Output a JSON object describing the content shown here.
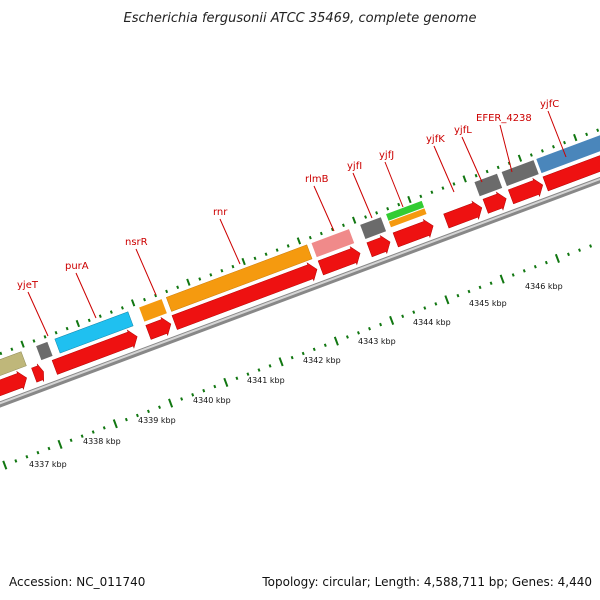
{
  "title": "Escherichia fergusonii ATCC 35469, complete genome",
  "footer": {
    "accession": "Accession: NC_011740",
    "summary": "Topology: circular; Length: 4,588,711 bp; Genes: 4,440"
  },
  "colors": {
    "cds": "#ee1111",
    "backbone": "#888888",
    "tick": "#117711",
    "label": "#cc0000"
  },
  "genes": [
    {
      "name": "yjeT",
      "color": "#cc0000",
      "icon": "gene-label"
    },
    {
      "name": "purA",
      "color": "#cc0000",
      "icon": "gene-label"
    },
    {
      "name": "nsrR",
      "color": "#cc0000",
      "icon": "gene-label"
    },
    {
      "name": "rnr",
      "color": "#cc0000",
      "icon": "gene-label"
    },
    {
      "name": "rlmB",
      "color": "#cc0000",
      "icon": "gene-label"
    },
    {
      "name": "yjfI",
      "color": "#cc0000",
      "icon": "gene-label"
    },
    {
      "name": "yjfJ",
      "color": "#cc0000",
      "icon": "gene-label"
    },
    {
      "name": "yjfK",
      "color": "#cc0000",
      "icon": "gene-label"
    },
    {
      "name": "yjfL",
      "color": "#cc0000",
      "icon": "gene-label"
    },
    {
      "name": "EFER_4238",
      "color": "#cc0000",
      "icon": "gene-label"
    },
    {
      "name": "yjfC",
      "color": "#cc0000",
      "icon": "gene-label"
    }
  ],
  "scale_labels": [
    "4337 kbp",
    "4338 kbp",
    "4339 kbp",
    "4340 kbp",
    "4341 kbp",
    "4342 kbp",
    "4343 kbp",
    "4344 kbp",
    "4345 kbp",
    "4346 kbp"
  ]
}
